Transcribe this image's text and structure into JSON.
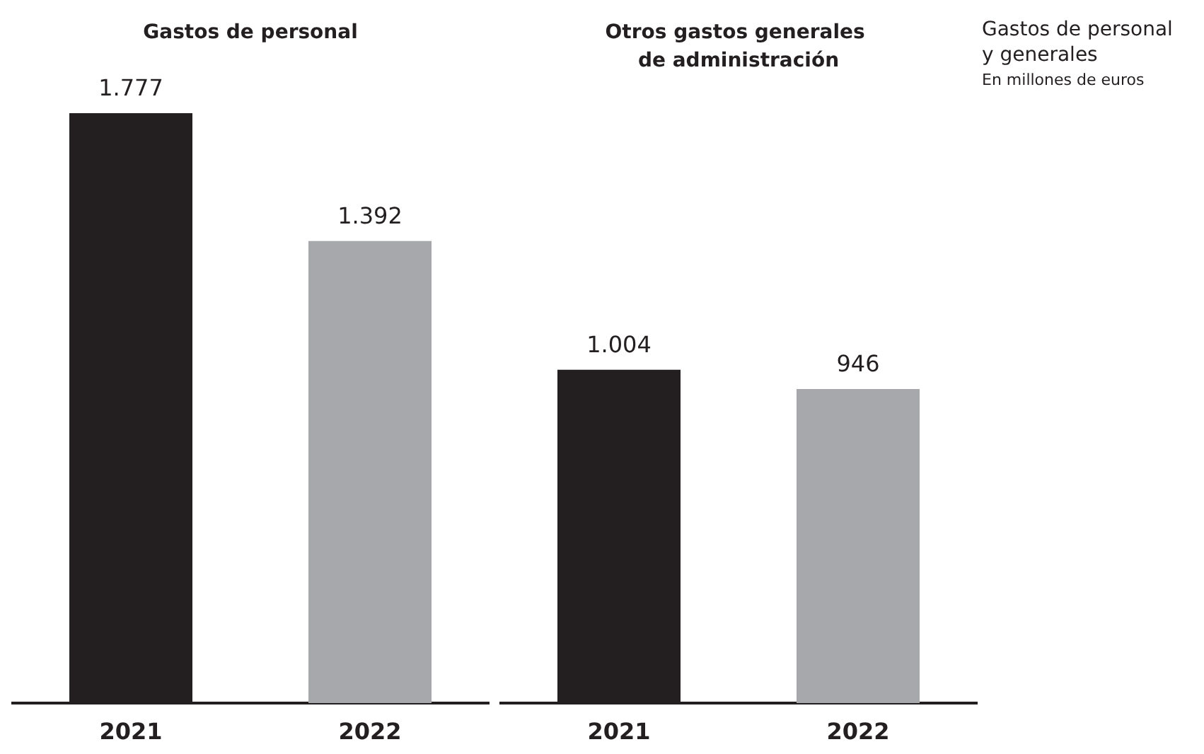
{
  "chart_data": [
    {
      "type": "bar",
      "title": "Gastos de personal",
      "categories": [
        "2021",
        "2022"
      ],
      "series": [
        {
          "values": [
            1777,
            1392
          ],
          "colors": [
            "#231f20",
            "#a7a8ab"
          ],
          "value_labels": [
            "1.777",
            "1.392"
          ]
        }
      ]
    },
    {
      "type": "bar",
      "title": "Otros gastos generales de administración",
      "categories": [
        "2021",
        "2022"
      ],
      "series": [
        {
          "values": [
            1004,
            946
          ],
          "colors": [
            "#231f20",
            "#a7a8ab"
          ],
          "value_labels": [
            "1.004",
            "946"
          ]
        }
      ]
    },
    {
      "type": "other",
      "title": "Gastos de personal y generales",
      "subtitle": "En millones de euros"
    }
  ]
}
